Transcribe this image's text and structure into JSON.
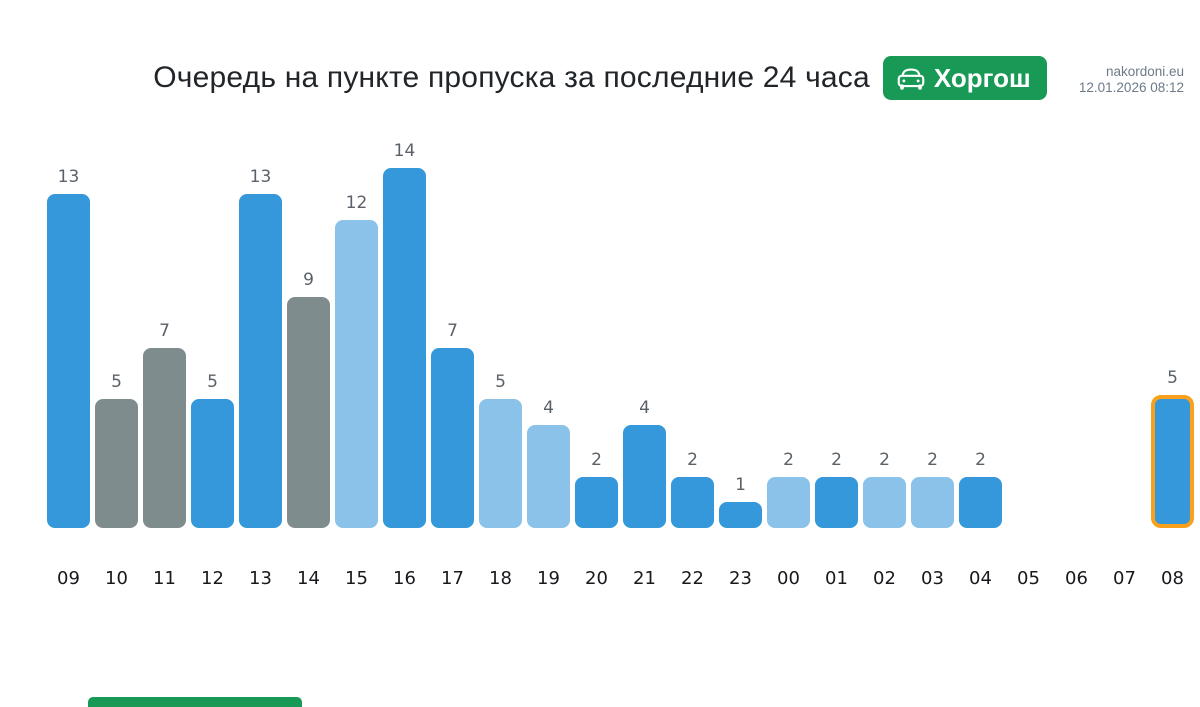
{
  "meta": {
    "site": "nakordoni.eu",
    "datetime": "12.01.2026 08:12"
  },
  "header": {
    "title": "Очередь на пункте пропуска за последние 24 часа",
    "checkpoint_badge": {
      "label": "Хоргош",
      "icon": "car-front-icon",
      "background": "#189a56",
      "text_color": "#ffffff"
    }
  },
  "chart_data": {
    "type": "bar",
    "title": "Очередь на пункте пропуска за последние 24 часа",
    "categories": [
      "09",
      "10",
      "11",
      "12",
      "13",
      "14",
      "15",
      "16",
      "17",
      "18",
      "19",
      "20",
      "21",
      "22",
      "23",
      "00",
      "01",
      "02",
      "03",
      "04",
      "05",
      "06",
      "07",
      "08"
    ],
    "values": [
      13,
      5,
      7,
      5,
      13,
      9,
      12,
      14,
      7,
      5,
      4,
      2,
      4,
      2,
      1,
      2,
      2,
      2,
      2,
      2,
      null,
      null,
      null,
      5
    ],
    "bar_colors": [
      "blue",
      "gray",
      "gray",
      "blue",
      "blue",
      "gray",
      "lightblue",
      "blue",
      "blue",
      "lightblue",
      "lightblue",
      "blue",
      "blue",
      "blue",
      "blue",
      "lightblue",
      "blue",
      "lightblue",
      "lightblue",
      "blue",
      null,
      null,
      null,
      "blue"
    ],
    "highlighted_category": "08",
    "palette": {
      "blue": "#3598db",
      "lightblue": "#8ac2e9",
      "gray": "#7f8c8d",
      "highlight_border": "#f9a11c"
    },
    "value_labels": true,
    "grid": false,
    "ylim": [
      0,
      14
    ],
    "xlabel": "",
    "ylabel": ""
  },
  "footer": {
    "accent_color": "#189a56"
  }
}
